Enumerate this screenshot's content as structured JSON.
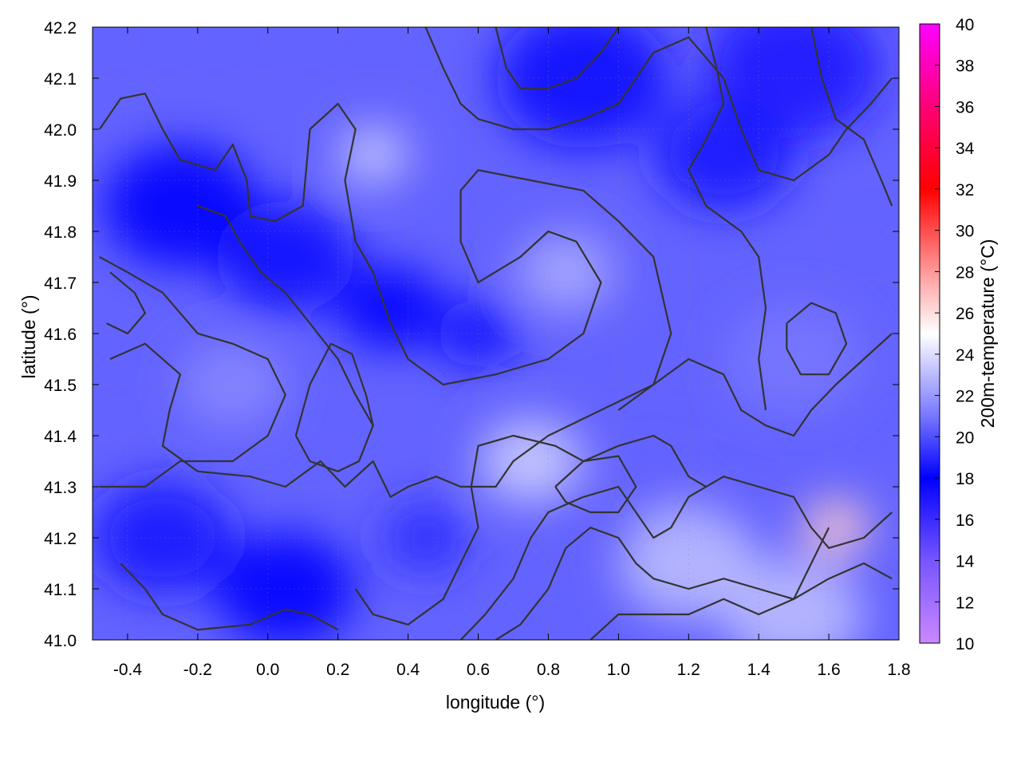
{
  "chart_data": {
    "type": "heatmap",
    "xlabel": "longitude (°)",
    "ylabel": "latitude (°)",
    "colorbar_label": "200m-temperature (°C)",
    "xlim": [
      -0.5,
      1.8
    ],
    "ylim": [
      41.0,
      42.2
    ],
    "xticks": [
      -0.4,
      -0.2,
      0.0,
      0.2,
      0.4,
      0.6,
      0.8,
      1.0,
      1.2,
      1.4,
      1.6,
      1.8
    ],
    "xtick_labels": [
      "-0.4",
      "-0.2",
      "0.0",
      "0.2",
      "0.4",
      "0.6",
      "0.8",
      "1.0",
      "1.2",
      "1.4",
      "1.6",
      "1.8"
    ],
    "yticks": [
      41.0,
      41.1,
      41.2,
      41.3,
      41.4,
      41.5,
      41.6,
      41.7,
      41.8,
      41.9,
      42.0,
      42.1,
      42.2
    ],
    "ytick_labels": [
      "41.0",
      "41.1",
      "41.2",
      "41.3",
      "41.4",
      "41.5",
      "41.6",
      "41.7",
      "41.8",
      "41.9",
      "42.0",
      "42.1",
      "42.2"
    ],
    "colorbar": {
      "range": [
        10,
        40
      ],
      "ticks": [
        10,
        12,
        14,
        16,
        18,
        20,
        22,
        24,
        26,
        28,
        30,
        32,
        34,
        36,
        38,
        40
      ],
      "tick_labels": [
        "10",
        "12",
        "14",
        "16",
        "18",
        "20",
        "22",
        "24",
        "26",
        "28",
        "30",
        "32",
        "34",
        "36",
        "38",
        "40"
      ],
      "stops": [
        {
          "value": 10,
          "color": "#cc88ff"
        },
        {
          "value": 14,
          "color": "#7755ff"
        },
        {
          "value": 18,
          "color": "#0000ff"
        },
        {
          "value": 21,
          "color": "#7777ff"
        },
        {
          "value": 25,
          "color": "#ffffff"
        },
        {
          "value": 28,
          "color": "#ff9999"
        },
        {
          "value": 32,
          "color": "#ff0000"
        },
        {
          "value": 36,
          "color": "#ff0077"
        },
        {
          "value": 40,
          "color": "#ff00ff"
        }
      ]
    },
    "grid": true,
    "field_blobs": [
      {
        "lon": -0.25,
        "lat": 41.85,
        "value": 18.0,
        "radius": 0.22
      },
      {
        "lon": 0.05,
        "lat": 41.75,
        "value": 17.5,
        "radius": 0.2
      },
      {
        "lon": 0.35,
        "lat": 41.65,
        "value": 18.0,
        "radius": 0.15
      },
      {
        "lon": 0.6,
        "lat": 41.6,
        "value": 17.5,
        "radius": 0.12
      },
      {
        "lon": 0.9,
        "lat": 42.1,
        "value": 17.5,
        "radius": 0.25
      },
      {
        "lon": 1.5,
        "lat": 42.12,
        "value": 17.0,
        "radius": 0.25
      },
      {
        "lon": 1.3,
        "lat": 41.95,
        "value": 18.5,
        "radius": 0.2
      },
      {
        "lon": -0.3,
        "lat": 41.2,
        "value": 18.5,
        "radius": 0.2
      },
      {
        "lon": 0.05,
        "lat": 41.1,
        "value": 18.0,
        "radius": 0.2
      },
      {
        "lon": 0.45,
        "lat": 41.2,
        "value": 19.0,
        "radius": 0.12
      },
      {
        "lon": -0.1,
        "lat": 41.5,
        "value": 21.5,
        "radius": 0.15
      },
      {
        "lon": 0.3,
        "lat": 41.95,
        "value": 23.5,
        "radius": 0.1
      },
      {
        "lon": 0.85,
        "lat": 41.72,
        "value": 22.5,
        "radius": 0.14
      },
      {
        "lon": 0.75,
        "lat": 41.35,
        "value": 23.5,
        "radius": 0.15
      },
      {
        "lon": 1.2,
        "lat": 41.15,
        "value": 23.0,
        "radius": 0.2
      },
      {
        "lon": 1.5,
        "lat": 41.05,
        "value": 23.0,
        "radius": 0.2
      },
      {
        "lon": 1.62,
        "lat": 41.22,
        "value": 26.5,
        "radius": 0.1
      },
      {
        "lon": 1.5,
        "lat": 41.55,
        "value": 21.0,
        "radius": 0.2
      },
      {
        "lon": 1.1,
        "lat": 41.3,
        "value": 20.5,
        "radius": 0.1
      }
    ],
    "field_background_value": 20.5,
    "contours": [
      [
        [
          -0.48,
          42.0
        ],
        [
          -0.42,
          42.06
        ],
        [
          -0.35,
          42.07
        ],
        [
          -0.3,
          42.0
        ],
        [
          -0.25,
          41.94
        ],
        [
          -0.15,
          41.92
        ],
        [
          -0.1,
          41.97
        ],
        [
          -0.06,
          41.9
        ],
        [
          -0.05,
          41.83
        ],
        [
          0.02,
          41.82
        ],
        [
          0.1,
          41.85
        ],
        [
          0.12,
          42.0
        ],
        [
          0.2,
          42.05
        ],
        [
          0.25,
          42.0
        ],
        [
          0.22,
          41.9
        ],
        [
          0.25,
          41.78
        ],
        [
          0.3,
          41.72
        ],
        [
          0.35,
          41.62
        ],
        [
          0.4,
          41.55
        ],
        [
          0.5,
          41.5
        ],
        [
          0.65,
          41.52
        ],
        [
          0.8,
          41.55
        ],
        [
          0.9,
          41.6
        ],
        [
          0.95,
          41.7
        ],
        [
          0.88,
          41.78
        ],
        [
          0.8,
          41.8
        ],
        [
          0.72,
          41.75
        ],
        [
          0.6,
          41.7
        ],
        [
          0.55,
          41.78
        ],
        [
          0.55,
          41.88
        ],
        [
          0.6,
          41.92
        ],
        [
          0.75,
          41.9
        ],
        [
          0.9,
          41.88
        ],
        [
          1.0,
          41.82
        ],
        [
          1.1,
          41.75
        ],
        [
          1.15,
          41.6
        ],
        [
          1.1,
          41.5
        ],
        [
          1.0,
          41.45
        ]
      ],
      [
        [
          -0.2,
          41.85
        ],
        [
          -0.12,
          41.83
        ],
        [
          -0.08,
          41.78
        ],
        [
          -0.02,
          41.72
        ],
        [
          0.05,
          41.68
        ],
        [
          0.12,
          41.62
        ],
        [
          0.2,
          41.55
        ],
        [
          0.25,
          41.48
        ],
        [
          0.3,
          41.42
        ]
      ],
      [
        [
          -0.48,
          41.75
        ],
        [
          -0.4,
          41.72
        ],
        [
          -0.3,
          41.68
        ],
        [
          -0.2,
          41.6
        ],
        [
          -0.1,
          41.58
        ],
        [
          0.0,
          41.55
        ],
        [
          0.05,
          41.48
        ],
        [
          0.0,
          41.4
        ],
        [
          -0.1,
          41.35
        ],
        [
          -0.25,
          41.35
        ],
        [
          -0.35,
          41.3
        ],
        [
          -0.48,
          41.3
        ]
      ],
      [
        [
          -0.45,
          41.55
        ],
        [
          -0.35,
          41.58
        ],
        [
          -0.25,
          41.52
        ],
        [
          -0.28,
          41.45
        ],
        [
          -0.3,
          41.38
        ],
        [
          -0.2,
          41.33
        ],
        [
          -0.05,
          41.32
        ],
        [
          0.05,
          41.3
        ],
        [
          0.15,
          41.35
        ],
        [
          0.22,
          41.3
        ],
        [
          0.3,
          41.35
        ],
        [
          0.35,
          41.28
        ],
        [
          0.4,
          41.3
        ],
        [
          0.48,
          41.32
        ],
        [
          0.55,
          41.3
        ],
        [
          0.65,
          41.3
        ],
        [
          0.7,
          41.35
        ],
        [
          0.8,
          41.4
        ],
        [
          0.95,
          41.45
        ],
        [
          1.1,
          41.5
        ],
        [
          1.2,
          41.55
        ],
        [
          1.3,
          41.52
        ],
        [
          1.35,
          41.45
        ],
        [
          1.42,
          41.42
        ],
        [
          1.5,
          41.4
        ],
        [
          1.55,
          41.45
        ],
        [
          1.62,
          41.5
        ],
        [
          1.7,
          41.55
        ],
        [
          1.78,
          41.6
        ]
      ],
      [
        [
          0.25,
          41.1
        ],
        [
          0.3,
          41.05
        ],
        [
          0.4,
          41.03
        ],
        [
          0.5,
          41.08
        ],
        [
          0.55,
          41.15
        ],
        [
          0.6,
          41.22
        ],
        [
          0.58,
          41.3
        ],
        [
          0.6,
          41.38
        ],
        [
          0.7,
          41.4
        ],
        [
          0.82,
          41.38
        ],
        [
          0.9,
          41.35
        ],
        [
          1.0,
          41.38
        ],
        [
          1.1,
          41.4
        ],
        [
          1.15,
          41.38
        ],
        [
          1.2,
          41.32
        ],
        [
          1.25,
          41.3
        ]
      ],
      [
        [
          0.55,
          41.0
        ],
        [
          0.62,
          41.05
        ],
        [
          0.7,
          41.12
        ],
        [
          0.75,
          41.2
        ],
        [
          0.8,
          41.25
        ],
        [
          0.9,
          41.28
        ],
        [
          1.0,
          41.3
        ],
        [
          1.05,
          41.25
        ],
        [
          1.1,
          41.2
        ],
        [
          1.15,
          41.22
        ],
        [
          1.2,
          41.28
        ],
        [
          1.3,
          41.32
        ],
        [
          1.4,
          41.3
        ],
        [
          1.5,
          41.28
        ],
        [
          1.55,
          41.22
        ],
        [
          1.6,
          41.18
        ],
        [
          1.7,
          41.2
        ],
        [
          1.78,
          41.25
        ]
      ],
      [
        [
          0.65,
          41.0
        ],
        [
          0.72,
          41.03
        ],
        [
          0.8,
          41.1
        ],
        [
          0.85,
          41.18
        ],
        [
          0.92,
          41.22
        ],
        [
          1.0,
          41.2
        ],
        [
          1.05,
          41.15
        ],
        [
          1.1,
          41.12
        ],
        [
          1.2,
          41.1
        ],
        [
          1.3,
          41.12
        ],
        [
          1.4,
          41.1
        ],
        [
          1.5,
          41.08
        ],
        [
          1.6,
          41.12
        ],
        [
          1.7,
          41.15
        ],
        [
          1.78,
          41.12
        ]
      ],
      [
        [
          0.92,
          41.0
        ],
        [
          1.0,
          41.05
        ],
        [
          1.1,
          41.05
        ],
        [
          1.2,
          41.05
        ],
        [
          1.3,
          41.08
        ],
        [
          1.4,
          41.05
        ],
        [
          1.5,
          41.08
        ],
        [
          1.55,
          41.15
        ],
        [
          1.6,
          41.22
        ]
      ],
      [
        [
          0.45,
          42.2
        ],
        [
          0.5,
          42.12
        ],
        [
          0.55,
          42.05
        ],
        [
          0.6,
          42.02
        ],
        [
          0.7,
          42.0
        ],
        [
          0.8,
          42.0
        ],
        [
          0.9,
          42.02
        ],
        [
          1.0,
          42.05
        ],
        [
          1.05,
          42.1
        ],
        [
          1.1,
          42.15
        ],
        [
          1.2,
          42.18
        ],
        [
          1.3,
          42.1
        ],
        [
          1.35,
          42.0
        ],
        [
          1.4,
          41.92
        ],
        [
          1.5,
          41.9
        ],
        [
          1.6,
          41.95
        ],
        [
          1.65,
          42.0
        ],
        [
          1.72,
          42.05
        ],
        [
          1.78,
          42.1
        ]
      ],
      [
        [
          0.65,
          42.2
        ],
        [
          0.68,
          42.12
        ],
        [
          0.72,
          42.08
        ],
        [
          0.8,
          42.08
        ],
        [
          0.88,
          42.1
        ],
        [
          0.95,
          42.15
        ],
        [
          1.0,
          42.2
        ]
      ],
      [
        [
          1.25,
          42.2
        ],
        [
          1.28,
          42.12
        ],
        [
          1.3,
          42.05
        ],
        [
          1.25,
          41.98
        ],
        [
          1.2,
          41.92
        ],
        [
          1.25,
          41.85
        ],
        [
          1.35,
          41.8
        ],
        [
          1.4,
          41.75
        ],
        [
          1.42,
          41.65
        ],
        [
          1.4,
          41.55
        ],
        [
          1.42,
          41.45
        ]
      ],
      [
        [
          1.55,
          42.2
        ],
        [
          1.58,
          42.1
        ],
        [
          1.62,
          42.02
        ],
        [
          1.7,
          41.98
        ],
        [
          1.75,
          41.9
        ],
        [
          1.78,
          41.85
        ]
      ],
      [
        [
          -0.42,
          41.15
        ],
        [
          -0.35,
          41.1
        ],
        [
          -0.3,
          41.05
        ],
        [
          -0.2,
          41.02
        ],
        [
          -0.05,
          41.03
        ],
        [
          0.05,
          41.06
        ],
        [
          0.12,
          41.05
        ],
        [
          0.2,
          41.02
        ]
      ],
      [
        [
          0.08,
          41.4
        ],
        [
          0.12,
          41.5
        ],
        [
          0.18,
          41.58
        ],
        [
          0.24,
          41.56
        ],
        [
          0.28,
          41.48
        ],
        [
          0.3,
          41.42
        ],
        [
          0.26,
          41.35
        ],
        [
          0.2,
          41.33
        ],
        [
          0.12,
          41.35
        ],
        [
          0.08,
          41.4
        ]
      ],
      [
        [
          0.82,
          41.3
        ],
        [
          0.9,
          41.35
        ],
        [
          1.0,
          41.36
        ],
        [
          1.05,
          41.3
        ],
        [
          1.0,
          41.25
        ],
        [
          0.92,
          41.25
        ],
        [
          0.85,
          41.27
        ],
        [
          0.82,
          41.3
        ]
      ],
      [
        [
          1.48,
          41.62
        ],
        [
          1.55,
          41.66
        ],
        [
          1.62,
          41.64
        ],
        [
          1.65,
          41.58
        ],
        [
          1.6,
          41.52
        ],
        [
          1.52,
          41.52
        ],
        [
          1.48,
          41.57
        ],
        [
          1.48,
          41.62
        ]
      ],
      [
        [
          -0.45,
          41.72
        ],
        [
          -0.38,
          41.68
        ],
        [
          -0.35,
          41.64
        ],
        [
          -0.4,
          41.6
        ],
        [
          -0.46,
          41.62
        ]
      ]
    ]
  }
}
